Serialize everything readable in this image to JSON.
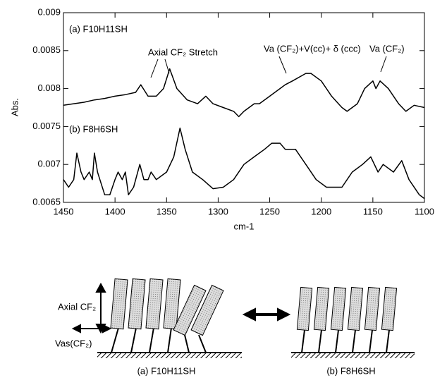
{
  "chart_data": {
    "type": "line",
    "xlabel": "cm-1",
    "ylabel": "Abs.",
    "xlim": [
      1450,
      1100
    ],
    "xticks": [
      1450,
      1400,
      1350,
      1300,
      1250,
      1200,
      1150,
      1100
    ],
    "ylim": [
      0.0065,
      0.009
    ],
    "yticks": [
      0.0065,
      0.007,
      0.0075,
      0.008,
      0.0085,
      0.009
    ],
    "series": [
      {
        "name": "(a) F10H11SH",
        "color": "#000000",
        "x": [
          1450,
          1440,
          1430,
          1420,
          1410,
          1400,
          1390,
          1380,
          1375,
          1368,
          1360,
          1353,
          1347,
          1340,
          1330,
          1320,
          1312,
          1305,
          1295,
          1285,
          1280,
          1275,
          1265,
          1260,
          1250,
          1240,
          1235,
          1228,
          1215,
          1210,
          1200,
          1190,
          1180,
          1175,
          1165,
          1158,
          1150,
          1147,
          1143,
          1135,
          1125,
          1118,
          1110,
          1100
        ],
        "values": [
          0.00778,
          0.0078,
          0.00782,
          0.00785,
          0.00787,
          0.0079,
          0.00792,
          0.00795,
          0.00805,
          0.0079,
          0.0079,
          0.008,
          0.00826,
          0.008,
          0.00785,
          0.0078,
          0.0079,
          0.0078,
          0.00775,
          0.0077,
          0.00763,
          0.0077,
          0.0078,
          0.0078,
          0.0079,
          0.008,
          0.00805,
          0.0081,
          0.0082,
          0.0082,
          0.0081,
          0.0079,
          0.00775,
          0.0077,
          0.0078,
          0.008,
          0.0081,
          0.008,
          0.0081,
          0.008,
          0.0078,
          0.0077,
          0.00778,
          0.00775
        ]
      },
      {
        "name": "(b) F8H6SH",
        "color": "#000000",
        "x": [
          1450,
          1445,
          1440,
          1437,
          1433,
          1430,
          1425,
          1422,
          1420,
          1417,
          1410,
          1405,
          1400,
          1397,
          1393,
          1390,
          1387,
          1382,
          1376,
          1372,
          1368,
          1365,
          1360,
          1350,
          1343,
          1337,
          1332,
          1325,
          1315,
          1305,
          1295,
          1285,
          1275,
          1265,
          1255,
          1248,
          1240,
          1235,
          1225,
          1215,
          1205,
          1195,
          1180,
          1170,
          1160,
          1152,
          1145,
          1140,
          1130,
          1122,
          1115,
          1105,
          1100
        ],
        "values": [
          0.0068,
          0.0067,
          0.0068,
          0.00715,
          0.0069,
          0.0068,
          0.0069,
          0.0068,
          0.00715,
          0.0069,
          0.0066,
          0.0066,
          0.0068,
          0.0069,
          0.0068,
          0.0069,
          0.0066,
          0.0067,
          0.007,
          0.0068,
          0.0068,
          0.0069,
          0.0068,
          0.0069,
          0.0071,
          0.00748,
          0.0072,
          0.0069,
          0.0068,
          0.00668,
          0.0067,
          0.0068,
          0.007,
          0.0071,
          0.0072,
          0.00728,
          0.00728,
          0.0072,
          0.0072,
          0.007,
          0.0068,
          0.0067,
          0.0067,
          0.0069,
          0.007,
          0.0071,
          0.0069,
          0.007,
          0.0069,
          0.00705,
          0.0068,
          0.0066,
          0.00655
        ]
      }
    ],
    "annotations": [
      "Axial CF₂ Stretch",
      "Va (CF₂)+V(cc)+ δ (ccc)",
      "Va (CF₂)"
    ]
  },
  "diagram": {
    "labels": [
      "Axial CF₂",
      "Vas(CF₂)",
      "(a) F10H11SH",
      "(b) F8H6SH"
    ]
  }
}
